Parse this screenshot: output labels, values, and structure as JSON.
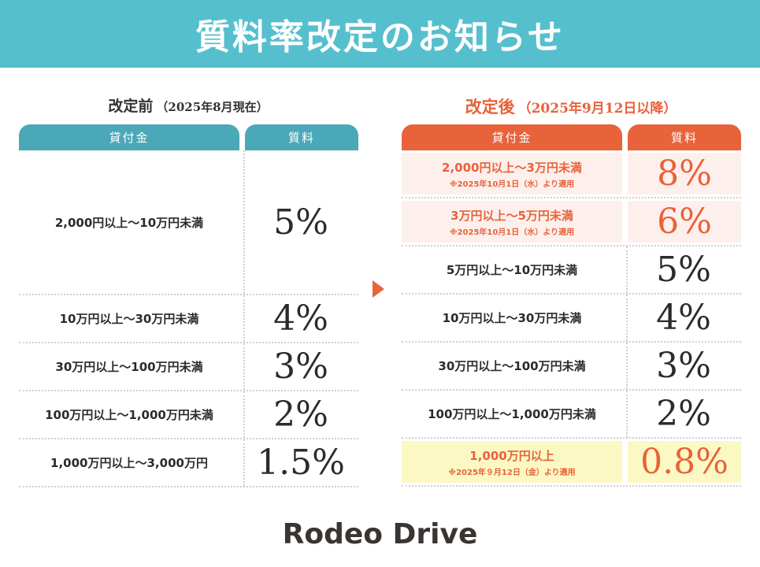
{
  "banner": {
    "title": "質料率改定のお知らせ"
  },
  "before": {
    "heading": "改定前",
    "subheading": "（2025年8月現在）",
    "col_amount": "貸付金",
    "col_fee": "質料",
    "rows": [
      {
        "amount": "2,000円以上～10万円未満",
        "fee": "5%"
      },
      {
        "amount": "10万円以上～30万円未満",
        "fee": "4%"
      },
      {
        "amount": "30万円以上～100万円未満",
        "fee": "3%"
      },
      {
        "amount": "100万円以上～1,000万円未満",
        "fee": "2%"
      },
      {
        "amount": "1,000万円以上～3,000万円",
        "fee": "1.5%"
      }
    ]
  },
  "after": {
    "heading": "改定後",
    "subheading": "（2025年9月12日以降）",
    "col_amount": "貸付金",
    "col_fee": "質料",
    "rows": [
      {
        "amount": "2,000円以上～3万円未満",
        "note": "※2025年10月1日（水）より適用",
        "fee": "8%"
      },
      {
        "amount": "3万円以上～5万円未満",
        "note": "※2025年10月1日（水）より適用",
        "fee": "6%"
      },
      {
        "amount": "5万円以上～10万円未満",
        "fee": "5%"
      },
      {
        "amount": "10万円以上～30万円未満",
        "fee": "4%"
      },
      {
        "amount": "30万円以上～100万円未満",
        "fee": "3%"
      },
      {
        "amount": "100万円以上～1,000万円未満",
        "fee": "2%"
      },
      {
        "amount": "1,000万円以上",
        "note": "※2025年９月12日（金）より適用",
        "fee": "0.8%"
      }
    ]
  },
  "arrow_icon": "arrow-right-icon",
  "logo": "Rodeo Drive",
  "colors": {
    "banner": "#56bfce",
    "before_header": "#4aa8b8",
    "after_header": "#e8623a",
    "highlight_pink": "#fdf0ec",
    "highlight_yellow": "#fcf8c4"
  }
}
